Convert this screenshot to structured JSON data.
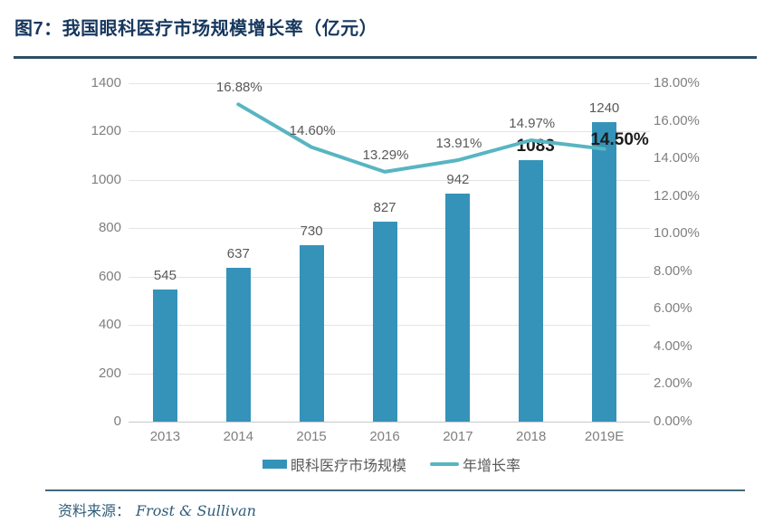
{
  "header": {
    "title": "图7：我国眼科医疗市场规模增长率（亿元）"
  },
  "legend": {
    "bar_label": "眼科医疗市场规模",
    "line_label": "年增长率"
  },
  "footer": {
    "source_label": "资料来源：",
    "source_value": "Frost & Sullivan"
  },
  "colors": {
    "bar": "#3593B9",
    "line": "#58B5C2",
    "title_accent": "#17375E",
    "gridline": "#E4E4E4",
    "label_gray": "#595959",
    "emphasis_black": "#1C1C1C"
  },
  "chart_data": {
    "type": "bar",
    "combo": "bar+line dual axis",
    "title": "我国眼科医疗市场规模增长率（亿元）",
    "categories": [
      "2013",
      "2014",
      "2015",
      "2016",
      "2017",
      "2018",
      "2019E"
    ],
    "series": [
      {
        "name": "眼科医疗市场规模",
        "type": "bar",
        "yaxis": "left",
        "values": [
          545,
          637,
          730,
          827,
          942,
          1083,
          1240
        ],
        "labels": [
          "545",
          "637",
          "730",
          "827",
          "942",
          "1083",
          "1240"
        ],
        "color": "#3593B9"
      },
      {
        "name": "年增长率",
        "type": "line",
        "yaxis": "right",
        "values": [
          null,
          16.88,
          14.6,
          13.29,
          13.91,
          14.97,
          14.5
        ],
        "labels": [
          null,
          "16.88%",
          "14.60%",
          "13.29%",
          "13.91%",
          "14.97%",
          "14.50%"
        ],
        "color": "#58B5C2"
      }
    ],
    "emphasized_bar_label_index": 5,
    "emphasized_line_label_index": 6,
    "left_axis": {
      "min": 0,
      "max": 1400,
      "step": 200,
      "ticks": [
        "0",
        "200",
        "400",
        "600",
        "800",
        "1000",
        "1200",
        "1400"
      ]
    },
    "right_axis": {
      "min": 0,
      "max": 18,
      "step": 2,
      "ticks": [
        "0.00%",
        "2.00%",
        "4.00%",
        "6.00%",
        "8.00%",
        "10.00%",
        "12.00%",
        "14.00%",
        "16.00%",
        "18.00%"
      ]
    },
    "grid": "horizontal gridlines at left-axis steps",
    "legend_position": "bottom"
  }
}
